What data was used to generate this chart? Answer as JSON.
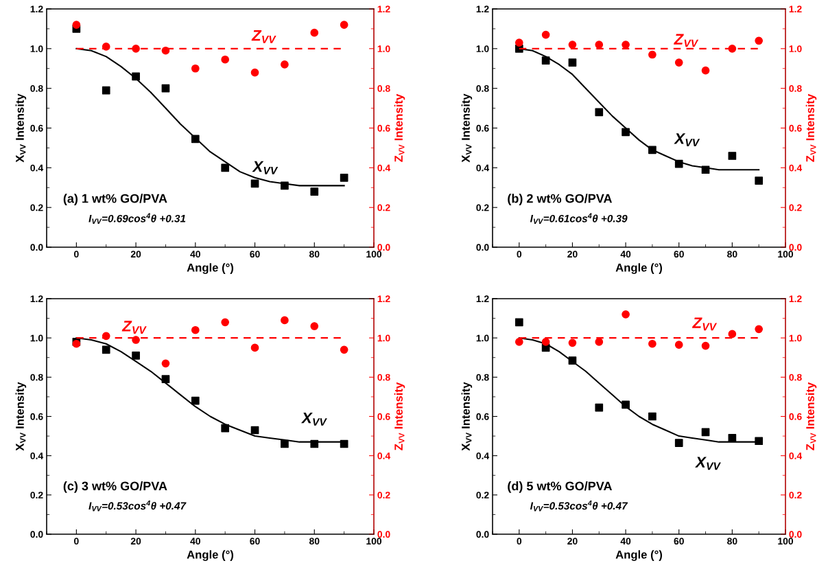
{
  "chart_data": [
    {
      "type": "scatter",
      "xlabel": "Angle (°)",
      "ylabel": "X$_{VV}$ Intensity",
      "y2label": "Z$_{VV}$ Intensity",
      "x": [
        0,
        10,
        20,
        30,
        40,
        50,
        60,
        70,
        80,
        90
      ],
      "series": [
        {
          "color": "#000000",
          "marker": "square",
          "values": [
            1.1,
            0.79,
            0.86,
            0.8,
            0.545,
            0.4,
            0.32,
            0.31,
            0.28,
            0.35
          ]
        },
        {
          "type": "line",
          "color": "#000000",
          "marker": "none",
          "line_style": "solid",
          "x": [
            0,
            5,
            10,
            15,
            20,
            25,
            30,
            35,
            40,
            45,
            50,
            55,
            60,
            65,
            70,
            75,
            80,
            85,
            90
          ],
          "values": [
            1.0,
            0.99,
            0.96,
            0.91,
            0.85,
            0.78,
            0.7,
            0.62,
            0.55,
            0.48,
            0.43,
            0.38,
            0.35,
            0.33,
            0.32,
            0.31,
            0.31,
            0.31,
            0.31
          ]
        },
        {
          "axis": "y2",
          "color": "#ff0000",
          "marker": "circle",
          "values": [
            1.12,
            1.01,
            1.0,
            0.99,
            0.9,
            0.945,
            0.88,
            0.92,
            1.08,
            1.12
          ]
        }
      ],
      "ref_lines": [
        {
          "axis": "y2",
          "value": 1.0,
          "color": "#ff0000",
          "line_style": "dashed"
        }
      ],
      "annotations": [
        "Z$_{VV}$",
        "X$_{VV}$",
        "(a) 1 wt% GO/PVA",
        "I$_{VV}$=0.69cos$^{4}$θ +0.31"
      ],
      "xlim": [
        -10,
        100
      ],
      "xticks": [
        0,
        20,
        40,
        60,
        80,
        100
      ],
      "ylim": [
        0,
        1.2
      ],
      "yticks": [
        {
          "value": 0,
          "label": "0.0"
        },
        {
          "value": 0.2,
          "label": "0.2"
        },
        {
          "value": 0.4,
          "label": "0.4"
        },
        {
          "value": 0.6,
          "label": "0.6"
        },
        {
          "value": 0.8,
          "label": "0.8"
        },
        {
          "value": 1,
          "label": "1.0"
        },
        {
          "value": 1.2,
          "label": "1.2"
        }
      ],
      "y2lim": [
        0,
        1.2
      ],
      "y2ticks": [
        {
          "value": 0,
          "label": "0.0"
        },
        {
          "value": 0.2,
          "label": "0.2"
        },
        {
          "value": 0.4,
          "label": "0.4"
        },
        {
          "value": 0.6,
          "label": "0.6"
        },
        {
          "value": 0.8,
          "label": "0.8"
        },
        {
          "value": 1,
          "label": "1.0"
        },
        {
          "value": 1.2,
          "label": "1.2"
        }
      ]
    },
    {
      "type": "scatter",
      "xlabel": "Angle (°)",
      "ylabel": "X$_{VV}$ Intensity",
      "y2label": "Z$_{VV}$ Intensity",
      "x": [
        0,
        10,
        20,
        30,
        40,
        50,
        60,
        70,
        80,
        90
      ],
      "series": [
        {
          "color": "#000000",
          "marker": "square",
          "values": [
            1.0,
            0.94,
            0.93,
            0.68,
            0.58,
            0.49,
            0.42,
            0.39,
            0.46,
            0.335
          ]
        },
        {
          "type": "line",
          "color": "#000000",
          "marker": "none",
          "line_style": "solid",
          "x": [
            0,
            5,
            10,
            15,
            20,
            25,
            30,
            35,
            40,
            45,
            50,
            55,
            60,
            65,
            70,
            75,
            80,
            85,
            90
          ],
          "values": [
            1.0,
            0.99,
            0.96,
            0.92,
            0.87,
            0.8,
            0.73,
            0.66,
            0.6,
            0.54,
            0.49,
            0.46,
            0.43,
            0.41,
            0.4,
            0.39,
            0.39,
            0.39,
            0.39
          ]
        },
        {
          "axis": "y2",
          "color": "#ff0000",
          "marker": "circle",
          "values": [
            1.03,
            1.07,
            1.02,
            1.02,
            1.02,
            0.97,
            0.93,
            0.89,
            1.0,
            1.04
          ]
        }
      ],
      "ref_lines": [
        {
          "axis": "y2",
          "value": 1.0,
          "color": "#ff0000",
          "line_style": "dashed"
        }
      ],
      "annotations": [
        "Z$_{VV}$",
        "X$_{VV}$",
        "(b) 2 wt% GO/PVA",
        "I$_{VV}$=0.61cos$^{4}$θ +0.39"
      ],
      "xlim": [
        -10,
        100
      ],
      "xticks": [
        0,
        20,
        40,
        60,
        80,
        100
      ],
      "ylim": [
        0,
        1.2
      ],
      "yticks": [
        {
          "value": 0,
          "label": "0.0"
        },
        {
          "value": 0.2,
          "label": "0.2"
        },
        {
          "value": 0.4,
          "label": "0.4"
        },
        {
          "value": 0.6,
          "label": "0.6"
        },
        {
          "value": 0.8,
          "label": "0.8"
        },
        {
          "value": 1,
          "label": "1.0"
        },
        {
          "value": 1.2,
          "label": "1.2"
        }
      ],
      "y2lim": [
        0,
        1.2
      ],
      "y2ticks": [
        {
          "value": 0,
          "label": "0.0"
        },
        {
          "value": 0.2,
          "label": "0.2"
        },
        {
          "value": 0.4,
          "label": "0.4"
        },
        {
          "value": 0.6,
          "label": "0.6"
        },
        {
          "value": 0.8,
          "label": "0.8"
        },
        {
          "value": 1,
          "label": "1.0"
        },
        {
          "value": 1.2,
          "label": "1.2"
        }
      ]
    },
    {
      "type": "scatter",
      "xlabel": "Angle (°)",
      "ylabel": "X$_{VV}$ Intensity",
      "y2label": "Z$_{VV}$ Intensity",
      "x": [
        0,
        10,
        20,
        30,
        40,
        50,
        60,
        70,
        80,
        90
      ],
      "series": [
        {
          "color": "#000000",
          "marker": "square",
          "values": [
            0.98,
            0.94,
            0.91,
            0.79,
            0.68,
            0.54,
            0.53,
            0.46,
            0.46,
            0.46
          ]
        },
        {
          "type": "line",
          "color": "#000000",
          "marker": "none",
          "line_style": "solid",
          "x": [
            0,
            5,
            10,
            15,
            20,
            25,
            30,
            35,
            40,
            45,
            50,
            55,
            60,
            65,
            70,
            75,
            80,
            85,
            90
          ],
          "values": [
            1.0,
            0.99,
            0.97,
            0.93,
            0.88,
            0.83,
            0.77,
            0.71,
            0.65,
            0.6,
            0.56,
            0.53,
            0.5,
            0.49,
            0.48,
            0.47,
            0.47,
            0.47,
            0.47
          ]
        },
        {
          "axis": "y2",
          "color": "#ff0000",
          "marker": "circle",
          "values": [
            0.97,
            1.01,
            0.99,
            0.87,
            1.04,
            1.08,
            0.95,
            1.09,
            1.06,
            0.94
          ]
        }
      ],
      "ref_lines": [
        {
          "axis": "y2",
          "value": 1.0,
          "color": "#ff0000",
          "line_style": "dashed"
        }
      ],
      "annotations": [
        "Z$_{VV}$",
        "X$_{VV}$",
        "(c) 3 wt% GO/PVA",
        "I$_{VV}$=0.53cos$^{4}$θ +0.47"
      ],
      "xlim": [
        -10,
        100
      ],
      "xticks": [
        0,
        20,
        40,
        60,
        80,
        100
      ],
      "ylim": [
        0,
        1.2
      ],
      "yticks": [
        {
          "value": 0,
          "label": "0.0"
        },
        {
          "value": 0.2,
          "label": "0.2"
        },
        {
          "value": 0.4,
          "label": "0.4"
        },
        {
          "value": 0.6,
          "label": "0.6"
        },
        {
          "value": 0.8,
          "label": "0.8"
        },
        {
          "value": 1,
          "label": "1.0"
        },
        {
          "value": 1.2,
          "label": "1.2"
        }
      ],
      "y2lim": [
        0,
        1.2
      ],
      "y2ticks": [
        {
          "value": 0,
          "label": "0.0"
        },
        {
          "value": 0.2,
          "label": "0.2"
        },
        {
          "value": 0.4,
          "label": "0.4"
        },
        {
          "value": 0.6,
          "label": "0.6"
        },
        {
          "value": 0.8,
          "label": "0.8"
        },
        {
          "value": 1,
          "label": "1.0"
        },
        {
          "value": 1.2,
          "label": "1.2"
        }
      ]
    },
    {
      "type": "scatter",
      "xlabel": "Angle (°)",
      "ylabel": "X$_{VV}$ Intensity",
      "y2label": "Z$_{VV}$ Intensity",
      "x": [
        0,
        10,
        20,
        30,
        40,
        50,
        60,
        70,
        80,
        90
      ],
      "series": [
        {
          "color": "#000000",
          "marker": "square",
          "values": [
            1.08,
            0.95,
            0.885,
            0.645,
            0.66,
            0.6,
            0.465,
            0.52,
            0.49,
            0.475
          ]
        },
        {
          "type": "line",
          "color": "#000000",
          "marker": "none",
          "line_style": "solid",
          "x": [
            0,
            5,
            10,
            15,
            20,
            25,
            30,
            35,
            40,
            45,
            50,
            55,
            60,
            65,
            70,
            75,
            80,
            85,
            90
          ],
          "values": [
            1.0,
            0.99,
            0.97,
            0.93,
            0.88,
            0.83,
            0.77,
            0.71,
            0.65,
            0.6,
            0.56,
            0.53,
            0.5,
            0.49,
            0.48,
            0.47,
            0.47,
            0.47,
            0.47
          ]
        },
        {
          "axis": "y2",
          "color": "#ff0000",
          "marker": "circle",
          "values": [
            0.98,
            0.98,
            0.975,
            0.98,
            1.12,
            0.97,
            0.965,
            0.96,
            1.02,
            1.045
          ]
        }
      ],
      "ref_lines": [
        {
          "axis": "y2",
          "value": 1.0,
          "color": "#ff0000",
          "line_style": "dashed"
        }
      ],
      "annotations": [
        "Z$_{VV}$",
        "X$_{VV}$",
        "(d) 5 wt% GO/PVA",
        "I$_{VV}$=0.53cos$^{4}$θ +0.47"
      ],
      "xlim": [
        -10,
        100
      ],
      "xticks": [
        0,
        20,
        40,
        60,
        80,
        100
      ],
      "ylim": [
        0,
        1.2
      ],
      "yticks": [
        {
          "value": 0,
          "label": "0.0"
        },
        {
          "value": 0.2,
          "label": "0.2"
        },
        {
          "value": 0.4,
          "label": "0.4"
        },
        {
          "value": 0.6,
          "label": "0.6"
        },
        {
          "value": 0.8,
          "label": "0.8"
        },
        {
          "value": 1,
          "label": "1.0"
        },
        {
          "value": 1.2,
          "label": "1.2"
        }
      ],
      "y2lim": [
        0,
        1.2
      ],
      "y2ticks": [
        {
          "value": 0,
          "label": "0.0"
        },
        {
          "value": 0.2,
          "label": "0.2"
        },
        {
          "value": 0.4,
          "label": "0.4"
        },
        {
          "value": 0.6,
          "label": "0.6"
        },
        {
          "value": 0.8,
          "label": "0.8"
        },
        {
          "value": 1,
          "label": "1.0"
        },
        {
          "value": 1.2,
          "label": "1.2"
        }
      ]
    }
  ]
}
